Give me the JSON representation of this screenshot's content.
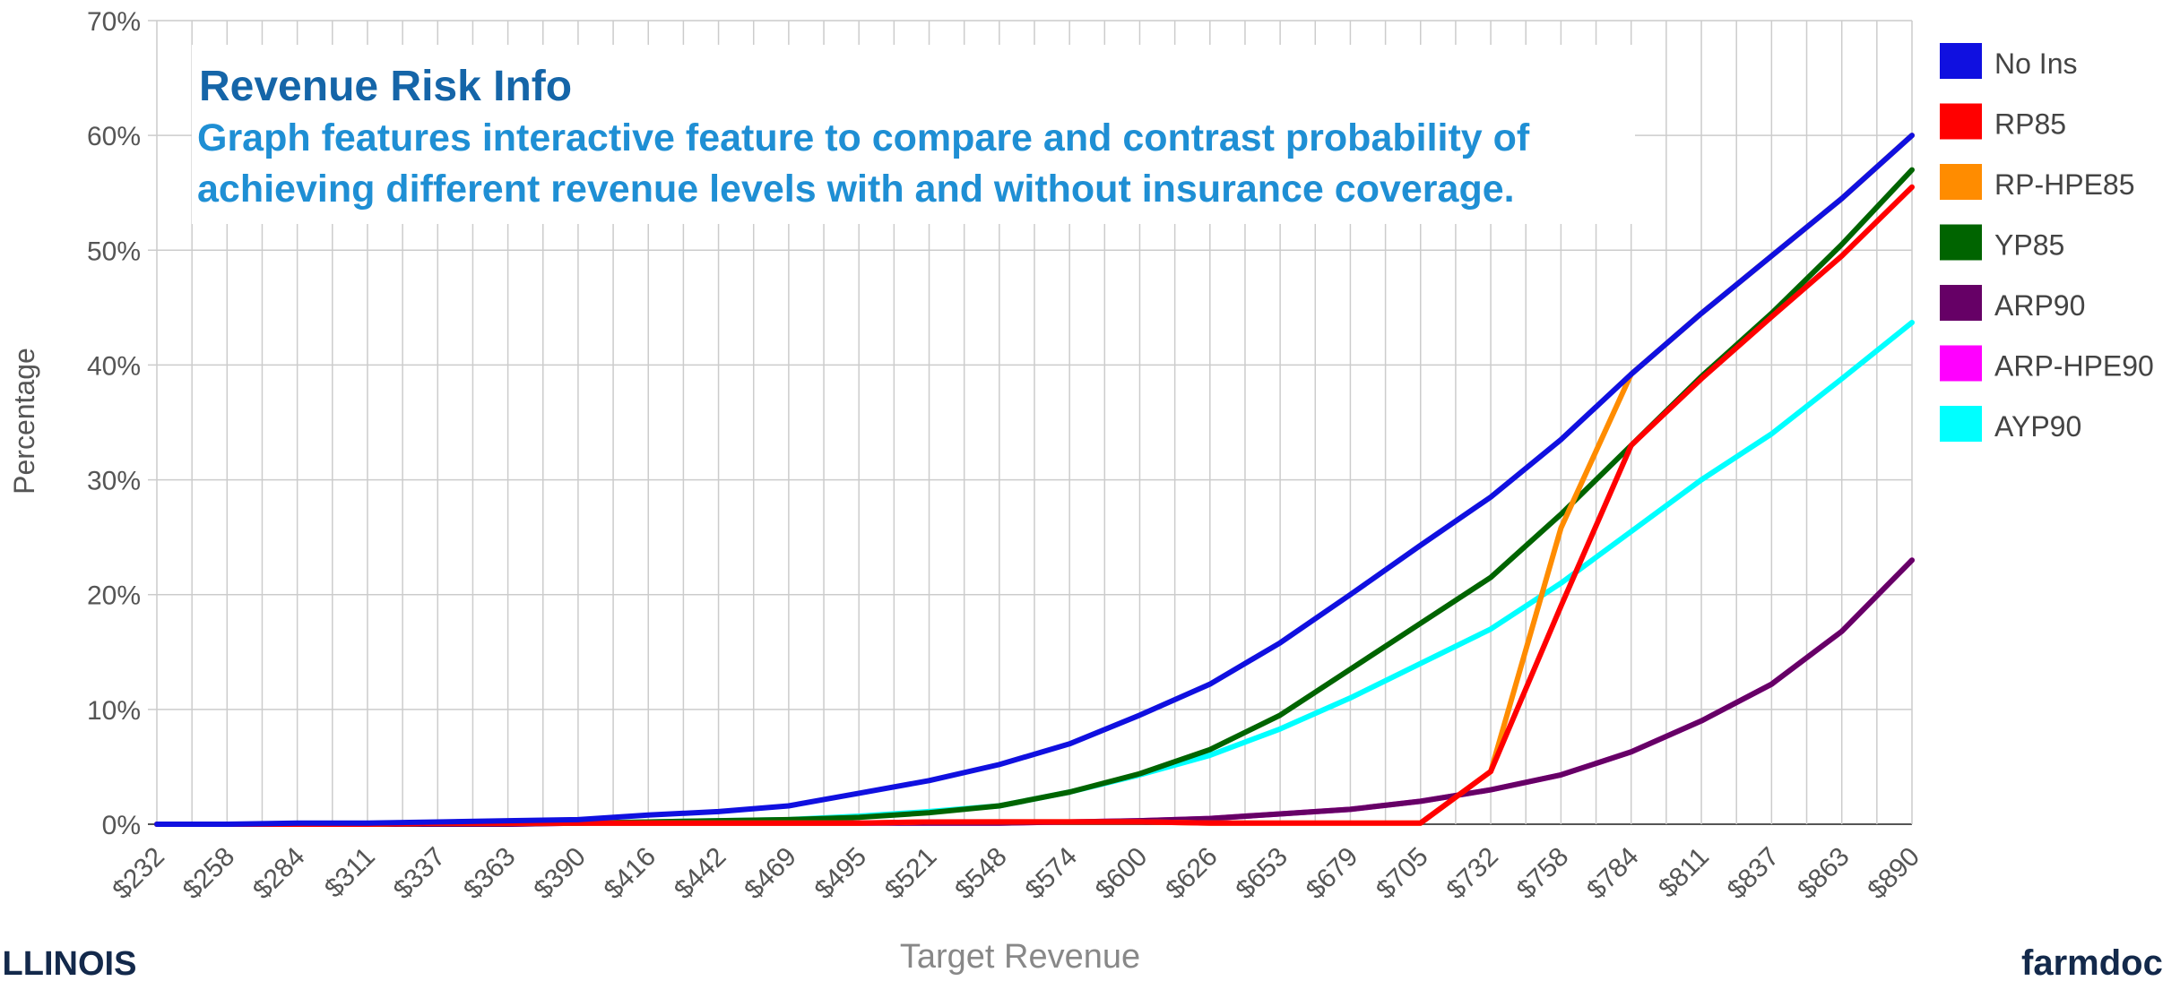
{
  "chart_data": {
    "type": "line",
    "title": "Revenue Risk Info",
    "subtitle": "Graph features interactive feature to compare and contrast probability of achieving different revenue levels with and without insurance coverage.",
    "x_label": "Target Revenue",
    "y_label": "Percentage",
    "footer_left": "ILLINOIS",
    "footer_right": "farmdoc",
    "categories": [
      "$232",
      "$258",
      "$284",
      "$311",
      "$337",
      "$363",
      "$390",
      "$416",
      "$442",
      "$469",
      "$495",
      "$521",
      "$548",
      "$574",
      "$600",
      "$626",
      "$653",
      "$679",
      "$705",
      "$732",
      "$758",
      "$784",
      "$811",
      "$837",
      "$863",
      "$890"
    ],
    "series": [
      {
        "name": "No Ins",
        "color": "#1010e0",
        "values": [
          0,
          0,
          0.1,
          0.1,
          0.2,
          0.3,
          0.4,
          0.8,
          1.1,
          1.6,
          2.7,
          3.8,
          5.2,
          7.0,
          9.5,
          12.2,
          15.8,
          20,
          24.3,
          28.5,
          33.5,
          39.2,
          44.5,
          49.5,
          54.5,
          60
        ]
      },
      {
        "name": "RP85",
        "color": "#ff0000",
        "values": [
          0,
          0,
          0,
          0,
          0.1,
          0.1,
          0.1,
          0.1,
          0.1,
          0.1,
          0.1,
          0.2,
          0.2,
          0.2,
          0.2,
          0.1,
          0.1,
          0.1,
          0.1,
          4.6,
          19,
          33,
          38.8,
          44.2,
          49.5,
          55.5
        ]
      },
      {
        "name": "RP-HPE85",
        "color": "#ff8c00",
        "values": [
          0,
          0,
          0,
          0,
          0.1,
          0.1,
          0.1,
          0.1,
          0.1,
          0.1,
          0.1,
          0.2,
          0.2,
          0.2,
          0.2,
          0.1,
          0.1,
          0.1,
          0.1,
          4.6,
          25.8,
          39.2,
          44.5,
          49.5,
          54.5,
          60
        ]
      },
      {
        "name": "YP85",
        "color": "#006400",
        "values": [
          0,
          0,
          0,
          0,
          0.1,
          0.1,
          0.1,
          0.2,
          0.3,
          0.4,
          0.6,
          1.0,
          1.6,
          2.8,
          4.4,
          6.5,
          9.5,
          13.5,
          17.5,
          21.5,
          27,
          33,
          39,
          44.5,
          50.5,
          57
        ]
      },
      {
        "name": "ARP90",
        "color": "#660066",
        "values": [
          0,
          0,
          0,
          0,
          0,
          0,
          0.1,
          0.1,
          0.1,
          0.1,
          0.1,
          0.1,
          0.1,
          0.2,
          0.3,
          0.5,
          0.9,
          1.3,
          2.0,
          3.0,
          4.3,
          6.3,
          9.0,
          12.2,
          16.8,
          23
        ]
      },
      {
        "name": "ARP-HPE90",
        "color": "#ff00ff",
        "values": [
          0,
          0,
          0,
          0,
          0,
          0,
          0.1,
          0.1,
          0.1,
          0.1,
          0.1,
          0.1,
          0.1,
          0.2,
          0.3,
          0.5,
          0.9,
          1.3,
          2.0,
          3.0,
          4.3,
          6.3,
          9.0,
          12.2,
          16.8,
          23
        ]
      },
      {
        "name": "AYP90",
        "color": "#00ffff",
        "values": [
          0,
          0,
          0,
          0,
          0.1,
          0.1,
          0.1,
          0.2,
          0.3,
          0.4,
          0.7,
          1.1,
          1.6,
          2.8,
          4.3,
          6.0,
          8.3,
          11,
          14,
          17,
          21,
          25.5,
          30,
          34,
          38.8,
          43.7
        ]
      }
    ],
    "ylim": [
      0,
      70
    ],
    "yticks": [
      {
        "value": 0,
        "label": "0%"
      },
      {
        "value": 10,
        "label": "10%"
      },
      {
        "value": 20,
        "label": "20%"
      },
      {
        "value": 30,
        "label": "30%"
      },
      {
        "value": 40,
        "label": "40%"
      },
      {
        "value": 50,
        "label": "50%"
      },
      {
        "value": 60,
        "label": "60%"
      },
      {
        "value": 70,
        "label": "70%"
      }
    ],
    "grid": true,
    "legend": "right"
  }
}
